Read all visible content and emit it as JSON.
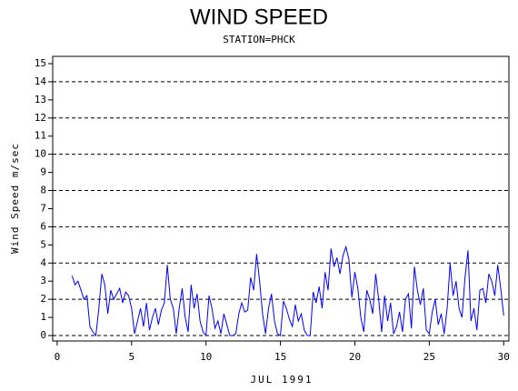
{
  "chart_data": {
    "type": "line",
    "title": "WIND SPEED",
    "subtitle": "STATION=PHCK",
    "x_label": "JUL 1991",
    "y_label": "Wind Speed m/sec",
    "color": "#0000ff",
    "xlim": [
      -0.3,
      30.35
    ],
    "xticks": [
      0,
      5,
      10,
      15,
      20,
      25,
      30
    ],
    "ylim": [
      -0.3,
      15.4
    ],
    "yticks": [
      0,
      1,
      2,
      3,
      4,
      5,
      6,
      7,
      8,
      9,
      10,
      11,
      12,
      13,
      14,
      15
    ],
    "ygrid": [
      0,
      2,
      4,
      6,
      8,
      10,
      12,
      14
    ],
    "x": [
      1.0,
      1.2,
      1.4,
      1.6,
      1.8,
      2.0,
      2.2,
      2.4,
      2.6,
      2.8,
      3.0,
      3.2,
      3.4,
      3.6,
      3.8,
      4.0,
      4.2,
      4.4,
      4.6,
      4.8,
      5.0,
      5.2,
      5.4,
      5.6,
      5.8,
      6.0,
      6.2,
      6.4,
      6.6,
      6.8,
      7.0,
      7.2,
      7.4,
      7.6,
      7.8,
      8.0,
      8.2,
      8.4,
      8.6,
      8.8,
      9.0,
      9.2,
      9.4,
      9.6,
      9.8,
      10.0,
      10.2,
      10.4,
      10.6,
      10.8,
      11.0,
      11.2,
      11.4,
      11.6,
      11.8,
      12.0,
      12.2,
      12.4,
      12.6,
      12.8,
      13.0,
      13.2,
      13.4,
      13.6,
      13.8,
      14.0,
      14.2,
      14.4,
      14.6,
      14.8,
      15.0,
      15.2,
      15.4,
      15.6,
      15.8,
      16.0,
      16.2,
      16.4,
      16.6,
      16.8,
      17.0,
      17.2,
      17.4,
      17.6,
      17.8,
      18.0,
      18.2,
      18.4,
      18.6,
      18.8,
      19.0,
      19.2,
      19.4,
      19.6,
      19.8,
      20.0,
      20.2,
      20.4,
      20.6,
      20.8,
      21.0,
      21.2,
      21.4,
      21.6,
      21.8,
      22.0,
      22.2,
      22.4,
      22.6,
      22.8,
      23.0,
      23.2,
      23.4,
      23.6,
      23.8,
      24.0,
      24.2,
      24.4,
      24.6,
      24.8,
      25.0,
      25.2,
      25.4,
      25.6,
      25.8,
      26.0,
      26.2,
      26.4,
      26.6,
      26.8,
      27.0,
      27.2,
      27.4,
      27.6,
      27.8,
      28.0,
      28.2,
      28.4,
      28.6,
      28.8,
      29.0,
      29.2,
      29.4,
      29.6,
      29.8,
      30.0
    ],
    "values": [
      3.3,
      2.8,
      3.0,
      2.5,
      2.0,
      2.2,
      0.5,
      0.2,
      0.0,
      1.5,
      3.4,
      2.8,
      1.2,
      2.5,
      2.0,
      2.3,
      2.6,
      1.8,
      2.4,
      2.2,
      1.5,
      0.1,
      0.8,
      1.5,
      0.5,
      1.8,
      0.3,
      1.0,
      1.5,
      0.6,
      1.4,
      1.8,
      3.9,
      2.0,
      1.5,
      0.1,
      1.5,
      2.6,
      1.0,
      0.2,
      2.8,
      1.5,
      2.3,
      0.8,
      0.2,
      0.0,
      2.2,
      1.5,
      0.4,
      0.8,
      0.1,
      1.2,
      0.6,
      0.0,
      0.0,
      0.1,
      1.2,
      1.8,
      1.3,
      1.4,
      3.2,
      2.5,
      4.5,
      3.0,
      1.2,
      0.1,
      1.5,
      2.3,
      0.8,
      0.1,
      0.0,
      1.9,
      1.5,
      0.9,
      0.5,
      1.7,
      0.8,
      1.2,
      0.3,
      0.0,
      0.0,
      2.4,
      1.8,
      2.7,
      1.5,
      3.5,
      2.5,
      4.8,
      3.8,
      4.3,
      3.4,
      4.4,
      4.9,
      4.2,
      2.1,
      3.5,
      2.6,
      1.0,
      0.2,
      2.5,
      2.0,
      1.2,
      3.4,
      2.0,
      0.2,
      2.2,
      0.8,
      1.8,
      0.1,
      0.5,
      1.3,
      0.2,
      2.0,
      2.3,
      0.4,
      3.8,
      2.5,
      1.7,
      2.6,
      0.3,
      0.1,
      1.3,
      2.0,
      0.6,
      1.2,
      0.1,
      1.5,
      4.0,
      2.2,
      3.0,
      1.5,
      1.0,
      3.2,
      4.7,
      0.8,
      1.5,
      0.3,
      2.5,
      2.6,
      1.8,
      3.4,
      3.0,
      2.2,
      3.9,
      2.6,
      1.1
    ]
  }
}
